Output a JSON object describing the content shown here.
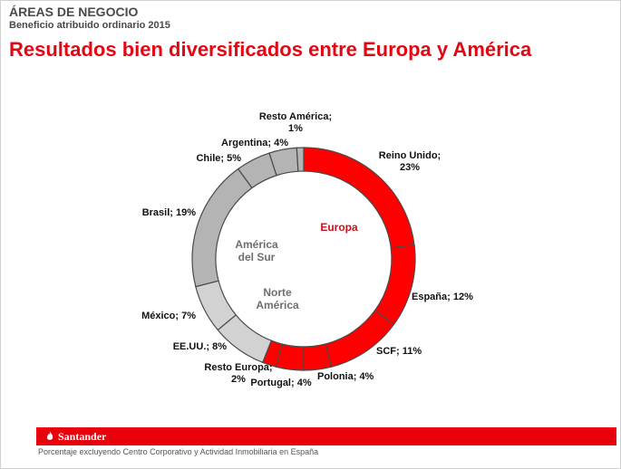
{
  "header": {
    "section_title": "ÁREAS DE NEGOCIO",
    "section_subtitle": "Beneficio atribuido ordinario 2015",
    "main_title": "Resultados bien diversificados entre Europa y América"
  },
  "chart_data": {
    "type": "pie",
    "variant": "donut",
    "title": "Resultados bien diversificados entre Europa y América",
    "unit": "%",
    "slices": [
      {
        "name": "Reino Unido",
        "value": 23,
        "group": "Europa",
        "label_lines": [
          "Reino Unido;",
          "23%"
        ]
      },
      {
        "name": "España",
        "value": 12,
        "group": "Europa",
        "label_lines": [
          "España; 12%"
        ]
      },
      {
        "name": "SCF",
        "value": 11,
        "group": "Europa",
        "label_lines": [
          "SCF; 11%"
        ]
      },
      {
        "name": "Polonia",
        "value": 4,
        "group": "Europa",
        "label_lines": [
          "Polonia; 4%"
        ]
      },
      {
        "name": "Portugal",
        "value": 4,
        "group": "Europa",
        "label_lines": [
          "Portugal; 4%"
        ]
      },
      {
        "name": "Resto Europa",
        "value": 2,
        "group": "Europa",
        "label_lines": [
          "Resto Europa;",
          "2%"
        ]
      },
      {
        "name": "EE.UU.",
        "value": 8,
        "group": "Norte América",
        "label_lines": [
          "EE.UU.; 8%"
        ]
      },
      {
        "name": "México",
        "value": 7,
        "group": "Norte América",
        "label_lines": [
          "México; 7%"
        ]
      },
      {
        "name": "Brasil",
        "value": 19,
        "group": "América del Sur",
        "label_lines": [
          "Brasil; 19%"
        ]
      },
      {
        "name": "Chile",
        "value": 5,
        "group": "América del Sur",
        "label_lines": [
          "Chile; 5%"
        ]
      },
      {
        "name": "Argentina",
        "value": 4,
        "group": "América del Sur",
        "label_lines": [
          "Argentina; 4%"
        ]
      },
      {
        "name": "Resto América",
        "value": 1,
        "group": "América del Sur",
        "label_lines": [
          "Resto América;",
          "1%"
        ]
      }
    ],
    "groups": [
      {
        "name": "Europa",
        "label_lines": [
          "Europa"
        ],
        "color": "#ff0000"
      },
      {
        "name": "Norte América",
        "label_lines": [
          "Norte",
          "América"
        ],
        "color": "#d2d2d2"
      },
      {
        "name": "América del Sur",
        "label_lines": [
          "América",
          "del Sur"
        ],
        "color": "#b4b4b4"
      }
    ],
    "start": "top",
    "direction": "clockwise"
  },
  "footer": {
    "brand": "Santander",
    "note": "Porcentaje excluyendo Centro Corporativo y Actividad Inmobiliaria en España"
  },
  "colors": {
    "brand_red": "#e30613",
    "europa": "#ff0000",
    "norte_america": "#d2d2d2",
    "america_sur": "#b4b4b4"
  }
}
